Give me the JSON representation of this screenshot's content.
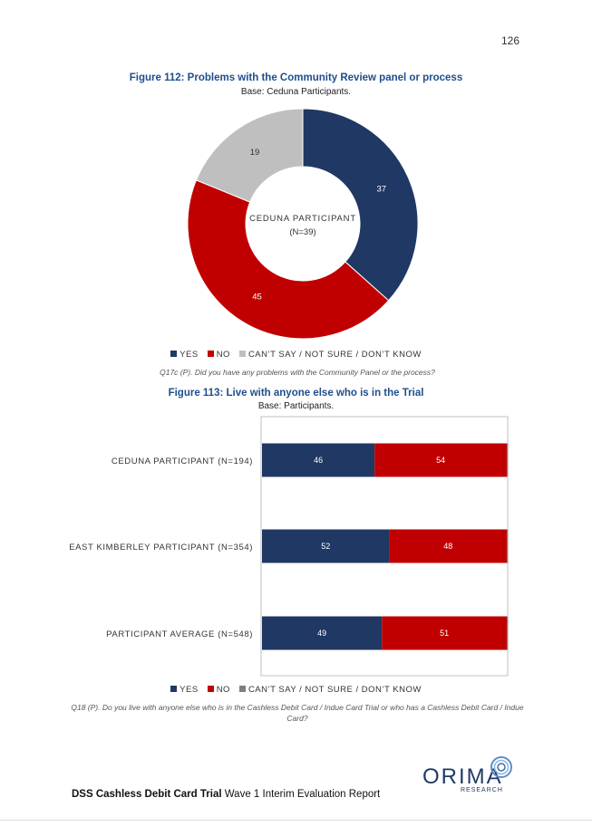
{
  "page_number": "126",
  "figure112": {
    "title": "Figure 112: Problems with the Community Review panel or process",
    "base": "Base: Ceduna Participants.",
    "question": "Q17c (P). Did you have any problems with the Community Panel or the process?"
  },
  "figure113": {
    "title": "Figure 113: Live with anyone else who is in the Trial",
    "base": "Base: Participants.",
    "question": "Q18 (P). Do you live with anyone else who is in the Cashless Debit Card / Indue Card Trial or who has a Cashless Debit Card / Indue Card?"
  },
  "legend": [
    {
      "label": "YES",
      "color": "#1f3864"
    },
    {
      "label": "NO",
      "color": "#c00000"
    },
    {
      "label": "CAN’T SAY / NOT SURE / DON’T KNOW",
      "color": "#bfbfbf"
    }
  ],
  "chart_data": [
    {
      "type": "pie",
      "donut": true,
      "title": "Figure 112: Problems with the Community Review panel or process",
      "center_label_line1": "CEDUNA PARTICIPANT",
      "center_label_line2": "(N=39)",
      "slices": [
        {
          "label": "YES",
          "value": 37,
          "color": "#1f3864"
        },
        {
          "label": "NO",
          "value": 45,
          "color": "#c00000"
        },
        {
          "label": "CAN’T SAY / NOT SURE / DON’T KNOW",
          "value": 19,
          "color": "#bfbfbf"
        }
      ],
      "legend_position": "bottom"
    },
    {
      "type": "bar",
      "orientation": "horizontal",
      "stacked": true,
      "title": "Figure 113: Live with anyone else who is in the Trial",
      "categories": [
        "CEDUNA PARTICIPANT (N=194)",
        "EAST KIMBERLEY PARTICIPANT (N=354)",
        "PARTICIPANT AVERAGE (N=548)"
      ],
      "series": [
        {
          "name": "YES",
          "values": [
            46,
            52,
            49
          ],
          "color": "#1f3864"
        },
        {
          "name": "NO",
          "values": [
            54,
            48,
            51
          ],
          "color": "#c00000"
        },
        {
          "name": "CAN’T SAY / NOT SURE / DON’T KNOW",
          "values": [
            0.5,
            0.5,
            0.5
          ],
          "color": "#7f7f7f"
        }
      ],
      "xlim": [
        0,
        100
      ],
      "legend_position": "bottom"
    }
  ],
  "footer": {
    "bold": "DSS Cashless Debit Card Trial",
    "rest": " Wave 1 Interim Evaluation Report"
  },
  "logo": {
    "word": "ORIMA",
    "sub": "RESEARCH",
    "color": "#1f3a66"
  }
}
